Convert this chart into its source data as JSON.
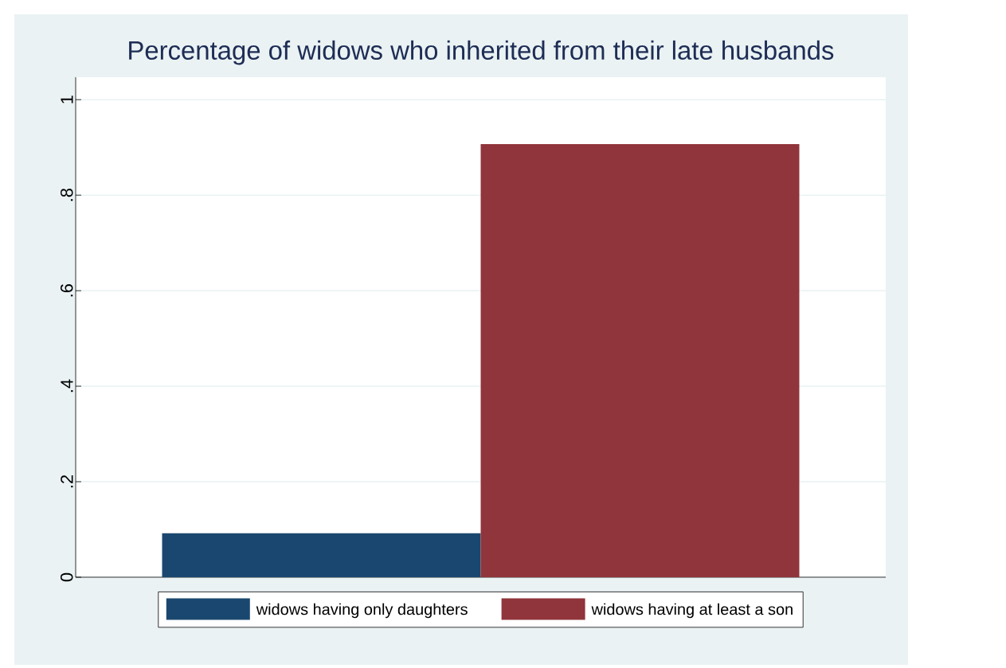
{
  "chart_data": {
    "type": "bar",
    "title": "Percentage of widows who inherited from their late husbands",
    "categories": [
      null
    ],
    "series": [
      {
        "name": "widows having only daughters",
        "color": "#1a476f",
        "values": [
          0.092
        ]
      },
      {
        "name": "widows having at least a son",
        "color": "#90353b",
        "values": [
          0.907
        ]
      }
    ],
    "ylim": [
      0,
      1.047
    ],
    "yticks": [
      0,
      {
        "value": 0.2,
        "label": ".2"
      },
      {
        "value": 0.4,
        "label": ".4"
      },
      {
        "value": 0.6,
        "label": ".6"
      },
      {
        "value": 0.8,
        "label": ".8"
      },
      1
    ],
    "grid": "y",
    "legend": "bottom",
    "tick_labels": "y"
  }
}
